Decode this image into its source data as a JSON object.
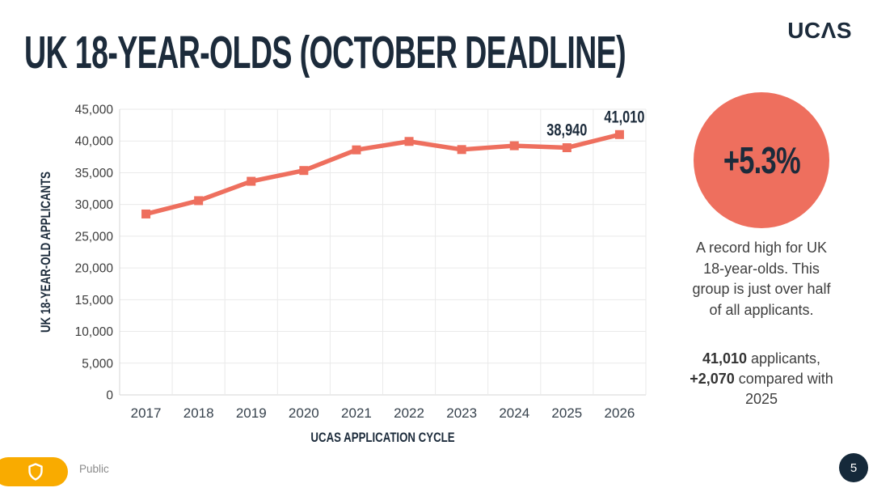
{
  "slide": {
    "title": "UK 18-YEAR-OLDS (OCTOBER DEADLINE)",
    "logo": "UCΛS",
    "page_number": "5",
    "footer_label": "Public"
  },
  "colors": {
    "navy": "#1C2B3B",
    "coral": "#EE6F5E",
    "badge_yellow": "#F9AB00",
    "body_text": "#3E3E3E"
  },
  "chart_data": {
    "type": "line",
    "title": "UK 18-YEAR-OLDS (OCTOBER DEADLINE)",
    "xlabel": "UCAS APPLICATION CYCLE",
    "ylabel": "UK 18-YEAR-OLD APPLICANTS",
    "categories": [
      "2017",
      "2018",
      "2019",
      "2020",
      "2021",
      "2022",
      "2023",
      "2024",
      "2025",
      "2026"
    ],
    "series": [
      {
        "name": "UK 18-year-old applicants",
        "values": [
          28500,
          30600,
          33650,
          35350,
          38600,
          39930,
          38650,
          39250,
          38940,
          41010
        ],
        "color": "#EE6F5E",
        "marker": "square"
      }
    ],
    "ylim": [
      0,
      45000
    ],
    "y_tick_labels": [
      "0",
      "5,000",
      "10,000",
      "15,000",
      "20,000",
      "25,000",
      "30,000",
      "35,000",
      "40,000",
      "45,000"
    ],
    "grid": true,
    "legend": false,
    "point_labels": {
      "2025": "38,940",
      "2026": "41,010"
    }
  },
  "highlight": {
    "stat": "+5.3%",
    "description": "A record high for UK 18-year-olds. This group is just over half of all applicants.",
    "detail": [
      {
        "text": "41,010",
        "bold": true
      },
      {
        "text": " applicants, ",
        "bold": false
      },
      {
        "text": "+2,070",
        "bold": true
      },
      {
        "text": " compared with 2025",
        "bold": false
      }
    ]
  }
}
